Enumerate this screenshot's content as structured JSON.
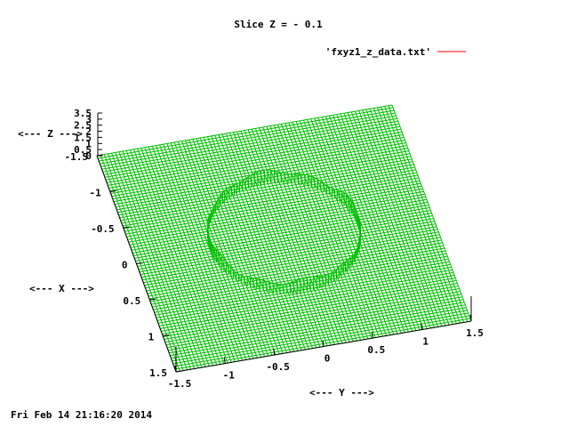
{
  "chart_data": {
    "type": "surface",
    "title": "Slice Z = - 0.1",
    "legend": {
      "label": "'fxyz1_z_data.txt'",
      "color": "#ff0000",
      "placement": "top-right"
    },
    "xlabel": "<--- X --->",
    "ylabel": "<--- Y --->",
    "zlabel": "<--- Z --->",
    "x_ticks": [
      "-1.5",
      "-1",
      "-0.5",
      "0",
      "0.5",
      "1",
      "1.5"
    ],
    "y_ticks": [
      "-1.5",
      "-1",
      "-0.5",
      "0",
      "0.5",
      "1",
      "1.5"
    ],
    "z_ticks": [
      "0",
      "0.5",
      "1",
      "1.5",
      "2",
      "2.5",
      "3",
      "3.5"
    ],
    "xlim": [
      -1.5,
      1.5
    ],
    "ylim": [
      -1.5,
      1.5
    ],
    "zlim": [
      0,
      3.5
    ],
    "surface_color": "#00c000",
    "surface_level": 0,
    "feature": {
      "shape": "ring wall",
      "radius": 0.75,
      "height_min": 0.6,
      "height_max": 1.2
    },
    "grid": false
  },
  "timestamp": "Fri Feb 14 21:16:20 2014"
}
